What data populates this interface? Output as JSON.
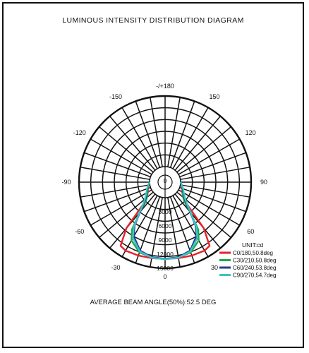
{
  "title": "LUMINOUS INTENSITY DISTRIBUTION DIAGRAM",
  "caption": "AVERAGE BEAM ANGLE(50%):52.5 DEG",
  "unit_label": "UNIT:cd",
  "chart_data": {
    "type": "polar",
    "title": "LUMINOUS INTENSITY DISTRIBUTION DIAGRAM",
    "unit": "cd",
    "angle_labels": [
      "-/+180",
      "150",
      "120",
      "90",
      "60",
      "30",
      "0",
      "-30",
      "-60",
      "-90",
      "-120",
      "-150"
    ],
    "radial_ticks": [
      "3000",
      "6000",
      "9000",
      "12000",
      "15000"
    ],
    "center_label": "0",
    "r_max": 15000,
    "grid": true,
    "legend_position": "right",
    "series": [
      {
        "name": "C0/180,50.8deg",
        "color": "#e8202a",
        "beam_angle": 50.8,
        "points": [
          [
            -90,
            0
          ],
          [
            -80,
            300
          ],
          [
            -70,
            600
          ],
          [
            -60,
            900
          ],
          [
            -50,
            1800
          ],
          [
            -45,
            3200
          ],
          [
            -40,
            9500
          ],
          [
            -35,
            13200
          ],
          [
            -30,
            13500
          ],
          [
            -20,
            13300
          ],
          [
            -10,
            13100
          ],
          [
            0,
            13000
          ],
          [
            10,
            13100
          ],
          [
            20,
            13300
          ],
          [
            30,
            13500
          ],
          [
            35,
            13200
          ],
          [
            40,
            9500
          ],
          [
            45,
            3200
          ],
          [
            50,
            1800
          ],
          [
            60,
            900
          ],
          [
            70,
            600
          ],
          [
            80,
            300
          ],
          [
            90,
            0
          ]
        ]
      },
      {
        "name": "C30/210,50.8deg",
        "color": "#1fa84a",
        "beam_angle": 50.8,
        "points": [
          [
            -90,
            0
          ],
          [
            -80,
            300
          ],
          [
            -70,
            700
          ],
          [
            -60,
            1000
          ],
          [
            -50,
            1700
          ],
          [
            -45,
            2500
          ],
          [
            -40,
            5000
          ],
          [
            -35,
            9000
          ],
          [
            -30,
            11000
          ],
          [
            -20,
            12600
          ],
          [
            -10,
            12900
          ],
          [
            0,
            13000
          ],
          [
            10,
            12900
          ],
          [
            20,
            12600
          ],
          [
            30,
            11000
          ],
          [
            35,
            9000
          ],
          [
            40,
            5000
          ],
          [
            45,
            2500
          ],
          [
            50,
            1700
          ],
          [
            60,
            1000
          ],
          [
            70,
            700
          ],
          [
            80,
            300
          ],
          [
            90,
            0
          ]
        ]
      },
      {
        "name": "C60/240,53.8deg",
        "color": "#283a9c",
        "beam_angle": 53.8,
        "points": [
          [
            -90,
            0
          ],
          [
            -80,
            300
          ],
          [
            -70,
            700
          ],
          [
            -60,
            1200
          ],
          [
            -50,
            2100
          ],
          [
            -45,
            3000
          ],
          [
            -40,
            5000
          ],
          [
            -35,
            8000
          ],
          [
            -30,
            10000
          ],
          [
            -20,
            12200
          ],
          [
            -10,
            12900
          ],
          [
            0,
            13000
          ],
          [
            10,
            12900
          ],
          [
            20,
            12200
          ],
          [
            30,
            10000
          ],
          [
            35,
            8000
          ],
          [
            40,
            5000
          ],
          [
            45,
            3000
          ],
          [
            50,
            2100
          ],
          [
            60,
            1200
          ],
          [
            70,
            700
          ],
          [
            80,
            300
          ],
          [
            90,
            0
          ]
        ]
      },
      {
        "name": "C90/270,54.7deg",
        "color": "#3cc4c4",
        "beam_angle": 54.7,
        "points": [
          [
            -90,
            0
          ],
          [
            -80,
            300
          ],
          [
            -70,
            800
          ],
          [
            -60,
            1300
          ],
          [
            -50,
            2300
          ],
          [
            -45,
            3300
          ],
          [
            -40,
            5200
          ],
          [
            -35,
            8300
          ],
          [
            -30,
            10400
          ],
          [
            -20,
            12400
          ],
          [
            -10,
            13000
          ],
          [
            0,
            13100
          ],
          [
            10,
            13000
          ],
          [
            20,
            12400
          ],
          [
            30,
            10400
          ],
          [
            35,
            8300
          ],
          [
            40,
            5200
          ],
          [
            45,
            3300
          ],
          [
            50,
            2300
          ],
          [
            60,
            1300
          ],
          [
            70,
            800
          ],
          [
            80,
            300
          ],
          [
            90,
            0
          ]
        ]
      }
    ]
  }
}
